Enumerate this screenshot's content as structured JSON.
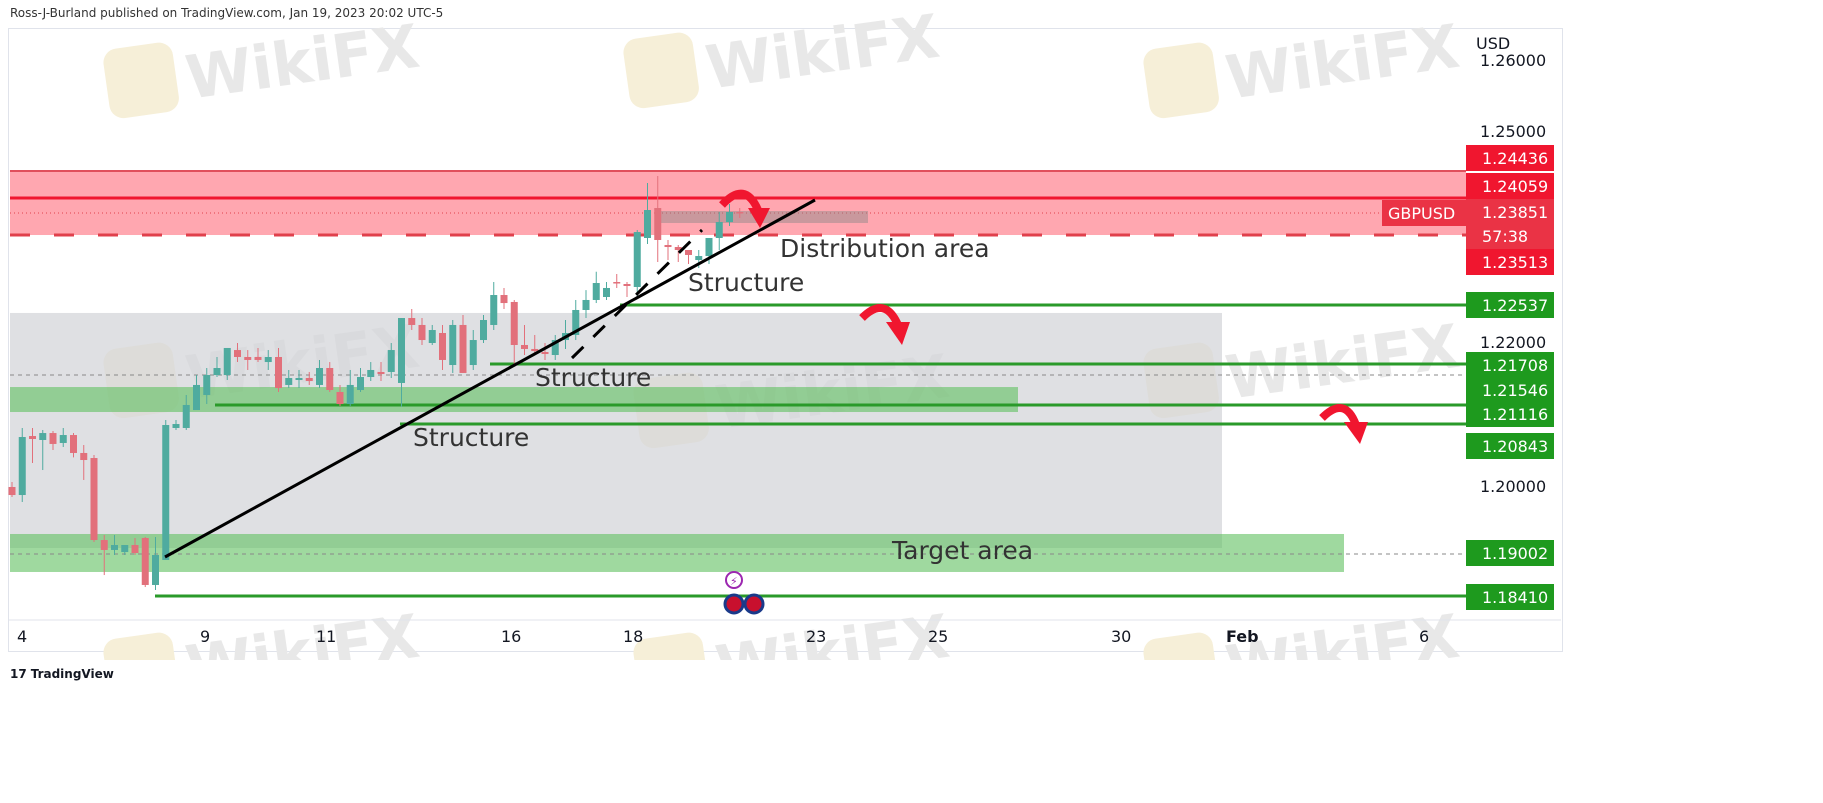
{
  "header": {
    "published": "Ross-J-Burland published on TradingView.com, Jan 19, 2023 20:02 UTC-5"
  },
  "footer": {
    "brand": "TradingView"
  },
  "watermark": "WikiFX",
  "colors": {
    "up": "#4fab9f",
    "down": "#e2707b",
    "zone_red": "#ff8a95",
    "zone_green": "#5fbf5f",
    "zone_gray": "#d4d6da",
    "label_red": "#f0162f",
    "label_green": "#1e9a1e"
  },
  "chart_data": {
    "type": "candlestick",
    "symbol": "GBPUSD",
    "currency": "USD",
    "timeframe_countdown": "57:38",
    "last_price": 1.23851,
    "y_ticks": [
      "1.26000",
      "1.25000",
      "1.22000",
      "1.20000"
    ],
    "y_tick_values": [
      1.26,
      1.25,
      1.22,
      1.2
    ],
    "x_ticks": [
      "4",
      "9",
      "11",
      "16",
      "18",
      "23",
      "25",
      "30",
      "Feb",
      "6"
    ],
    "ohlc": [
      [
        1.19986,
        1.20056,
        1.19845,
        1.19873
      ],
      [
        1.19873,
        1.20817,
        1.19775,
        1.2069
      ],
      [
        1.20704,
        1.20817,
        1.20324,
        1.20662
      ],
      [
        1.20648,
        1.20789,
        1.20225,
        1.20746
      ],
      [
        1.20746,
        1.20775,
        1.20507,
        1.20592
      ],
      [
        1.20606,
        1.20817,
        1.20549,
        1.20718
      ],
      [
        1.20718,
        1.20746,
        1.20404,
        1.20465
      ],
      [
        1.20465,
        1.20577,
        1.20085,
        1.20366
      ],
      [
        1.20394,
        1.20437,
        1.19211,
        1.19239
      ],
      [
        1.19239,
        1.1931,
        1.18746,
        1.19099
      ],
      [
        1.19099,
        1.1931,
        1.19028,
        1.19169
      ],
      [
        1.1907,
        1.19169,
        1.19028,
        1.19169
      ],
      [
        1.19169,
        1.19268,
        1.19028,
        1.19056
      ],
      [
        1.19268,
        1.19282,
        1.18577,
        1.18606
      ],
      [
        1.18606,
        1.19282,
        1.18535,
        1.19028
      ],
      [
        1.18958,
        1.2093,
        1.18958,
        1.20859
      ],
      [
        1.20817,
        1.2093,
        1.20789,
        1.20873
      ],
      [
        1.20817,
        1.21282,
        1.20789,
        1.21141
      ],
      [
        1.2107,
        1.21563,
        1.2107,
        1.21423
      ],
      [
        1.21282,
        1.21662,
        1.21155,
        1.21563
      ],
      [
        1.21563,
        1.21817,
        1.21535,
        1.21662
      ],
      [
        1.21563,
        1.21944,
        1.21493,
        1.21944
      ],
      [
        1.21915,
        1.22014,
        1.21746,
        1.21817
      ],
      [
        1.21817,
        1.21915,
        1.21634,
        1.21775
      ],
      [
        1.21817,
        1.21944,
        1.21746,
        1.21775
      ],
      [
        1.21746,
        1.21915,
        1.21634,
        1.21817
      ],
      [
        1.21817,
        1.21944,
        1.21324,
        1.2138
      ],
      [
        1.21423,
        1.21634,
        1.2138,
        1.21521
      ],
      [
        1.21493,
        1.21634,
        1.2138,
        1.21521
      ],
      [
        1.21521,
        1.21606,
        1.21423,
        1.21479
      ],
      [
        1.21423,
        1.21775,
        1.2138,
        1.21662
      ],
      [
        1.21662,
        1.21746,
        1.21324,
        1.21352
      ],
      [
        1.21324,
        1.21423,
        1.21126,
        1.21155
      ],
      [
        1.21155,
        1.21634,
        1.21126,
        1.21423
      ],
      [
        1.21352,
        1.21662,
        1.21324,
        1.21535
      ],
      [
        1.21535,
        1.21746,
        1.21479,
        1.21634
      ],
      [
        1.21606,
        1.21746,
        1.21479,
        1.21577
      ],
      [
        1.21606,
        1.22014,
        1.21521,
        1.21915
      ],
      [
        1.21451,
        1.22366,
        1.21116,
        1.22366
      ],
      [
        1.22366,
        1.22493,
        1.22197,
        1.22268
      ],
      [
        1.22268,
        1.22366,
        1.21986,
        1.22056
      ],
      [
        1.22014,
        1.22268,
        1.21986,
        1.22197
      ],
      [
        1.22155,
        1.22268,
        1.21634,
        1.21775
      ],
      [
        1.21704,
        1.22338,
        1.21592,
        1.22268
      ],
      [
        1.22268,
        1.22408,
        1.21592,
        1.21592
      ],
      [
        1.21704,
        1.22197,
        1.21634,
        1.22056
      ],
      [
        1.22056,
        1.22408,
        1.22014,
        1.22338
      ],
      [
        1.22268,
        1.22873,
        1.22197,
        1.2269
      ],
      [
        1.2269,
        1.22789,
        1.22493,
        1.22577
      ],
      [
        1.22592,
        1.2262,
        1.21704,
        1.21986
      ],
      [
        1.21986,
        1.22268,
        1.21845,
        1.2193
      ],
      [
        1.2193,
        1.22127,
        1.21845,
        1.21901
      ],
      [
        1.21887,
        1.22014,
        1.21775,
        1.21859
      ],
      [
        1.21845,
        1.22127,
        1.21775,
        1.22056
      ],
      [
        1.22056,
        1.22338,
        1.2193,
        1.22155
      ],
      [
        1.22127,
        1.2262,
        1.22056,
        1.22479
      ],
      [
        1.22479,
        1.22759,
        1.22366,
        1.2262
      ],
      [
        1.2262,
        1.23018,
        1.22577,
        1.22859
      ],
      [
        1.22662,
        1.22873,
        1.2262,
        1.22789
      ],
      [
        1.22873,
        1.22986,
        1.22789,
        1.22859
      ],
      [
        1.22845,
        1.22873,
        1.22662,
        1.22817
      ],
      [
        1.22803,
        1.23606,
        1.22662,
        1.23577
      ],
      [
        1.23493,
        1.24268,
        1.23408,
        1.23887
      ],
      [
        1.23915,
        1.24366,
        1.23155,
        1.23465
      ],
      [
        1.23394,
        1.23465,
        1.23183,
        1.23366
      ],
      [
        1.23366,
        1.23394,
        1.23155,
        1.23324
      ],
      [
        1.23324,
        1.23324,
        1.23126,
        1.23254
      ],
      [
        1.23183,
        1.23324,
        1.2307,
        1.23239
      ],
      [
        1.23239,
        1.23493,
        1.23126,
        1.23493
      ],
      [
        1.23493,
        1.23859,
        1.23324,
        1.23718
      ],
      [
        1.23718,
        1.23972,
        1.23662,
        1.23859
      ],
      [
        1.23859,
        1.23915,
        1.23775,
        1.23851
      ]
    ],
    "zones": [
      {
        "name": "gray-range",
        "top": 1.22437,
        "bottom": 1.19127,
        "color": "gray"
      },
      {
        "name": "distribution-zone",
        "top": 1.24436,
        "bottom": 1.23535,
        "color": "red"
      },
      {
        "name": "structure-band",
        "top": 1.21394,
        "bottom": 1.21042,
        "color": "green"
      },
      {
        "name": "target-zone",
        "top": 1.19324,
        "bottom": 1.18789,
        "color": "green"
      }
    ],
    "price_labels": [
      {
        "value": "1.24436",
        "color": "red"
      },
      {
        "value": "1.24059",
        "color": "red"
      },
      {
        "value": "1.23851",
        "color": "red"
      },
      {
        "value": "1.23513",
        "color": "red"
      },
      {
        "value": "1.22537",
        "color": "green"
      },
      {
        "value": "1.21708",
        "color": "green"
      },
      {
        "value": "1.21546",
        "color": "green"
      },
      {
        "value": "1.21116",
        "color": "green"
      },
      {
        "value": "1.20843",
        "color": "green"
      },
      {
        "value": "1.19002",
        "color": "green"
      },
      {
        "value": "1.18410",
        "color": "green"
      }
    ],
    "annotations": [
      "Distribution area",
      "Structure",
      "Structure",
      "Structure",
      "Target area"
    ]
  }
}
